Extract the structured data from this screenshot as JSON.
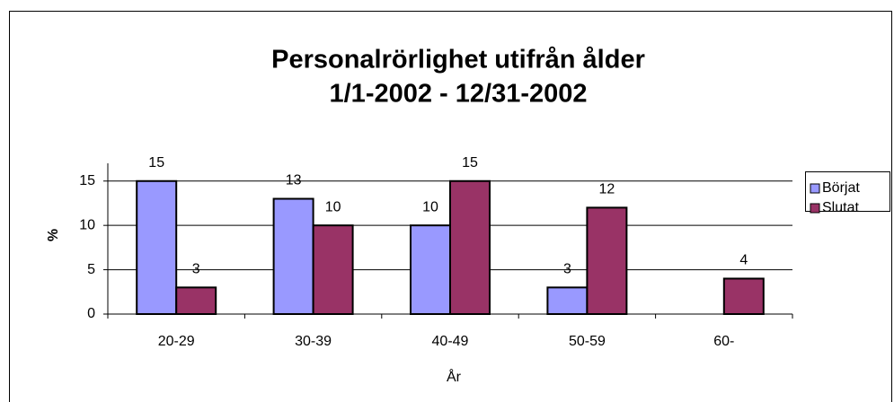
{
  "chart_data": {
    "type": "bar",
    "title": "Personalrörlighet utifrån ålder",
    "subtitle": "1/1-2002 - 12/31-2002",
    "x_label": "År",
    "y_label": "%",
    "categories": [
      "20-29",
      "30-39",
      "40-49",
      "50-59",
      "60-"
    ],
    "series": [
      {
        "name": "Börjat",
        "color": "#9999ff",
        "values": [
          15,
          13,
          10,
          3,
          null
        ]
      },
      {
        "name": "Slutat",
        "color": "#993366",
        "values": [
          3,
          10,
          15,
          12,
          4
        ]
      }
    ],
    "ylim": [
      0,
      17
    ],
    "yticks": [
      0,
      5,
      10,
      15
    ],
    "grid": true,
    "legend": "right"
  }
}
